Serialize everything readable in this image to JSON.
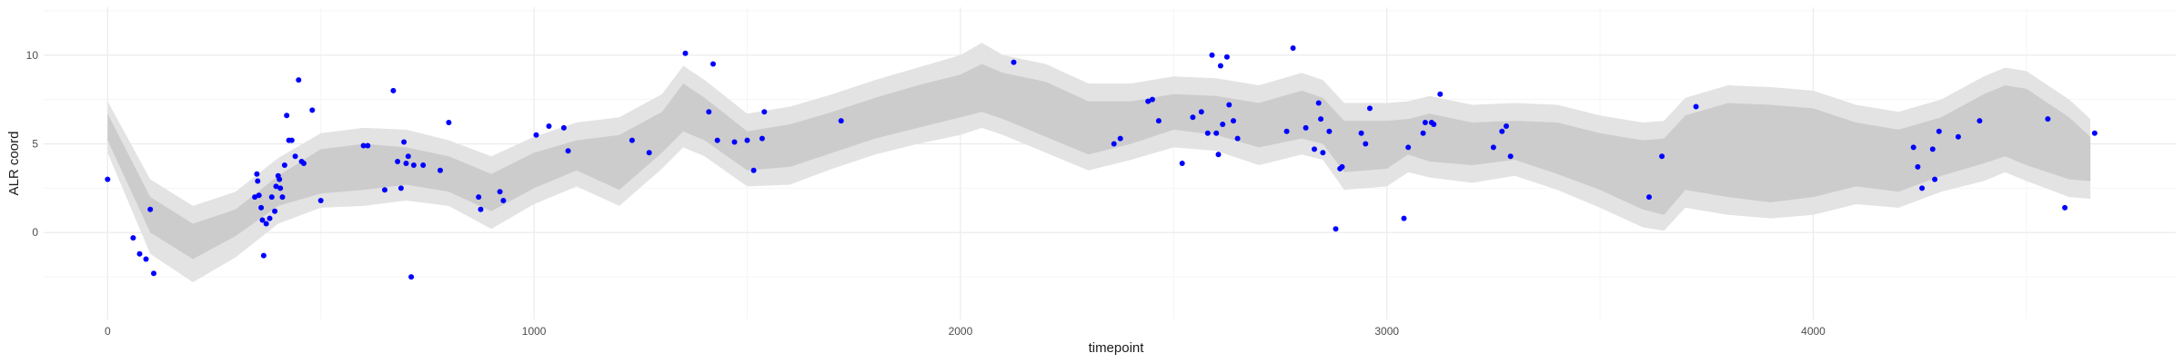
{
  "chart_data": {
    "type": "scatter",
    "title": "",
    "xlabel": "timepoint",
    "ylabel": "ALR coord",
    "xlim": [
      -150,
      4850
    ],
    "ylim": [
      -4.9,
      12.7
    ],
    "x_ticks": [
      0,
      1000,
      2000,
      3000,
      4000
    ],
    "x_tick_labels": [
      "0",
      "1000",
      "2000",
      "3000",
      "4000"
    ],
    "y_ticks": [
      0,
      5,
      10
    ],
    "y_tick_labels": [
      "0",
      "5",
      "10"
    ],
    "grid": true,
    "background": "minimal",
    "colors": {
      "points": "#0000ff",
      "band_inner": "#cccccc",
      "band_outer": "#e3e3e3",
      "grid_major": "#ebebeb",
      "grid_minor": "#f5f5f5"
    },
    "ribbon": {
      "x": [
        0,
        100,
        200,
        300,
        400,
        500,
        600,
        700,
        800,
        900,
        1000,
        1100,
        1200,
        1300,
        1350,
        1400,
        1500,
        1600,
        1700,
        1800,
        1900,
        2000,
        2050,
        2100,
        2200,
        2300,
        2400,
        2500,
        2600,
        2700,
        2800,
        2850,
        2900,
        3000,
        3050,
        3100,
        3200,
        3300,
        3400,
        3500,
        3600,
        3650,
        3700,
        3800,
        3900,
        4000,
        4100,
        4200,
        4300,
        4400,
        4450,
        4500,
        4600,
        4650
      ],
      "inner_lo": [
        5.2,
        0.0,
        -1.5,
        -0.2,
        1.5,
        2.2,
        2.4,
        2.7,
        2.3,
        1.2,
        2.5,
        3.5,
        2.4,
        4.5,
        5.7,
        5.2,
        3.5,
        3.7,
        4.5,
        5.3,
        5.9,
        6.5,
        6.8,
        6.4,
        5.4,
        4.4,
        5.0,
        5.8,
        5.5,
        4.8,
        5.3,
        5.0,
        3.4,
        3.6,
        4.4,
        4.0,
        3.8,
        4.1,
        3.3,
        2.4,
        1.3,
        1.0,
        2.4,
        2.0,
        1.7,
        2.0,
        2.6,
        2.3,
        3.2,
        3.9,
        4.3,
        3.8,
        3.0,
        2.9
      ],
      "inner_hi": [
        6.7,
        2.0,
        0.5,
        1.3,
        3.2,
        4.7,
        5.0,
        4.8,
        4.3,
        3.3,
        4.5,
        5.2,
        5.5,
        6.8,
        8.4,
        7.6,
        5.7,
        6.1,
        6.8,
        7.6,
        8.3,
        8.9,
        9.5,
        9.0,
        8.5,
        7.4,
        7.4,
        7.8,
        7.7,
        7.3,
        8.0,
        7.6,
        6.3,
        6.3,
        6.4,
        6.7,
        6.2,
        6.3,
        6.2,
        5.6,
        5.2,
        5.3,
        6.6,
        7.3,
        7.2,
        7.0,
        6.2,
        5.8,
        6.5,
        7.8,
        8.3,
        8.1,
        6.5,
        5.4
      ],
      "outer_lo": [
        4.5,
        -1.2,
        -2.8,
        -1.4,
        0.5,
        1.4,
        1.5,
        1.8,
        1.5,
        0.2,
        1.6,
        2.6,
        1.5,
        3.6,
        4.8,
        4.3,
        2.6,
        2.7,
        3.6,
        4.4,
        5.0,
        5.5,
        5.9,
        5.5,
        4.5,
        3.5,
        4.1,
        4.8,
        4.6,
        3.8,
        4.4,
        4.1,
        2.4,
        2.6,
        3.4,
        3.1,
        2.8,
        3.2,
        2.4,
        1.4,
        0.3,
        0.1,
        1.4,
        1.0,
        0.8,
        1.0,
        1.6,
        1.4,
        2.3,
        2.9,
        3.4,
        2.9,
        2.0,
        1.9
      ],
      "outer_hi": [
        7.4,
        3.0,
        1.5,
        2.3,
        4.2,
        5.6,
        5.9,
        5.8,
        5.2,
        4.3,
        5.4,
        6.2,
        6.5,
        7.8,
        9.4,
        8.6,
        6.7,
        7.1,
        7.8,
        8.6,
        9.3,
        10.0,
        10.7,
        10.0,
        9.5,
        8.4,
        8.4,
        8.8,
        8.7,
        8.3,
        9.0,
        8.6,
        7.3,
        7.3,
        7.4,
        7.7,
        7.2,
        7.3,
        7.2,
        6.6,
        6.2,
        6.3,
        7.6,
        8.3,
        8.2,
        8.0,
        7.2,
        6.8,
        7.5,
        8.8,
        9.3,
        9.1,
        7.5,
        6.4
      ]
    },
    "series": [
      {
        "x": [
          0,
          60,
          75,
          90,
          100,
          108,
          345,
          350,
          352,
          355,
          360,
          363,
          366,
          372,
          380,
          385,
          392,
          395,
          400,
          403,
          405,
          410,
          415,
          420,
          425,
          432,
          440,
          448,
          455,
          460,
          480,
          500,
          600,
          610,
          650,
          670,
          680,
          688,
          695,
          700,
          705,
          712,
          718,
          740,
          780,
          800,
          870,
          875,
          920,
          928,
          1005,
          1035,
          1070,
          1080,
          1230,
          1270,
          1355,
          1410,
          1420,
          1430,
          1470,
          1500,
          1515,
          1535,
          1540,
          1720,
          2125,
          2360,
          2375,
          2440,
          2450,
          2465,
          2520,
          2545,
          2565,
          2580,
          2590,
          2600,
          2605,
          2610,
          2615,
          2625,
          2630,
          2640,
          2650,
          2765,
          2780,
          2810,
          2830,
          2840,
          2845,
          2850,
          2865,
          2880,
          2890,
          2895,
          2940,
          2950,
          2960,
          3040,
          3050,
          3085,
          3090,
          3105,
          3110,
          3125,
          3250,
          3270,
          3280,
          3290,
          3615,
          3645,
          3725,
          4235,
          4245,
          4255,
          4280,
          4285,
          4295,
          4340,
          4390,
          4550,
          4590,
          4660
        ],
        "y": [
          3.0,
          -0.3,
          -1.2,
          -1.5,
          1.3,
          -2.3,
          2.0,
          3.3,
          2.9,
          2.1,
          1.4,
          0.7,
          -1.3,
          0.5,
          0.8,
          2.0,
          1.2,
          2.6,
          3.2,
          3.0,
          2.5,
          2.0,
          3.8,
          6.6,
          5.2,
          5.2,
          4.3,
          8.6,
          4.0,
          3.9,
          6.9,
          1.8,
          4.9,
          4.9,
          2.4,
          8.0,
          4.0,
          2.5,
          5.1,
          3.9,
          4.3,
          -2.5,
          3.8,
          3.8,
          3.5,
          6.2,
          2.0,
          1.3,
          2.3,
          1.8,
          5.5,
          6.0,
          5.9,
          4.6,
          5.2,
          4.5,
          10.1,
          6.8,
          9.5,
          5.2,
          5.1,
          5.2,
          3.5,
          5.3,
          6.8,
          6.3,
          9.6,
          5.0,
          5.3,
          7.4,
          7.5,
          6.3,
          3.9,
          6.5,
          6.8,
          5.6,
          10.0,
          5.6,
          4.4,
          9.4,
          6.1,
          9.9,
          7.2,
          6.3,
          5.3,
          5.7,
          10.4,
          5.9,
          4.7,
          7.3,
          6.4,
          4.5,
          5.7,
          0.2,
          3.6,
          3.7,
          5.6,
          5.0,
          7.0,
          0.8,
          4.8,
          5.6,
          6.2,
          6.2,
          6.1,
          7.8,
          4.8,
          5.7,
          6.0,
          4.3,
          2.0,
          4.3,
          7.1,
          4.8,
          3.7,
          2.5,
          4.7,
          3.0,
          5.7,
          5.4,
          6.3,
          6.4,
          1.4,
          5.6
        ]
      }
    ]
  }
}
